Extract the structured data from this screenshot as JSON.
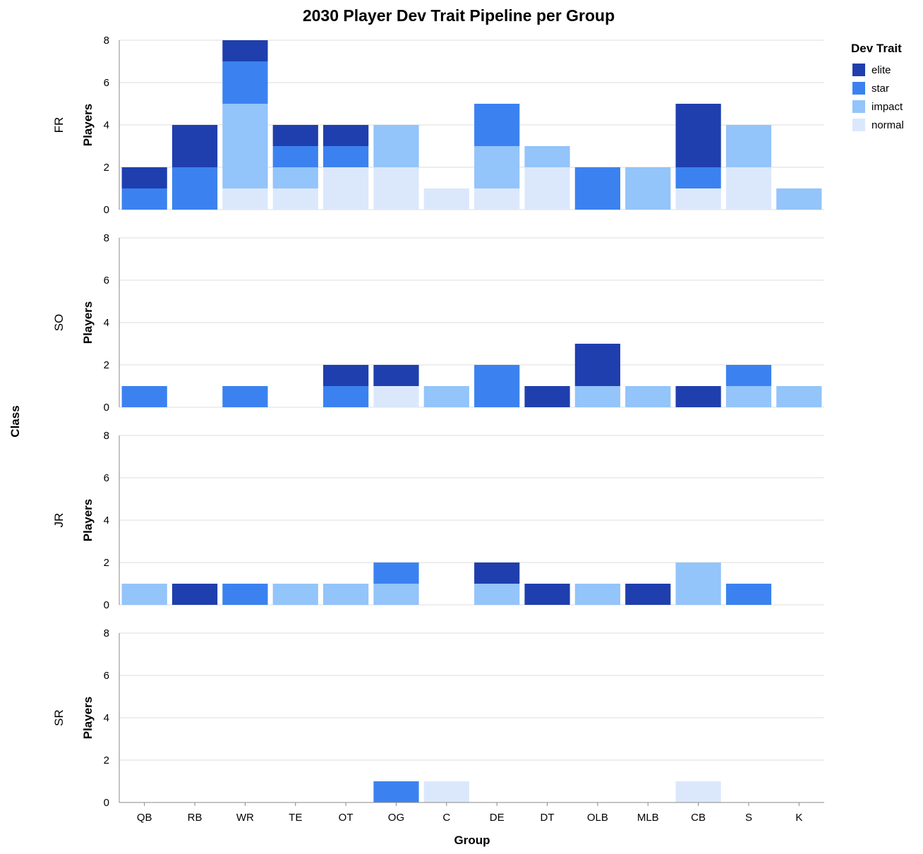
{
  "chart_data": {
    "type": "bar",
    "stacked": true,
    "faceted": true,
    "title": "2030 Player Dev Trait Pipeline per Group",
    "xlabel": "Group",
    "ylabel": "Players",
    "row_title": "Class",
    "legend_title": "Dev Trait",
    "legend_position": "top-right",
    "ylim": [
      0,
      8
    ],
    "yticks": [
      0,
      2,
      4,
      6,
      8
    ],
    "grid": true,
    "categories": [
      "QB",
      "RB",
      "WR",
      "TE",
      "OT",
      "OG",
      "C",
      "DE",
      "DT",
      "OLB",
      "MLB",
      "CB",
      "S",
      "K"
    ],
    "traits": [
      {
        "name": "elite",
        "color": "#1f3fae"
      },
      {
        "name": "star",
        "color": "#3b82f0"
      },
      {
        "name": "impact",
        "color": "#93c4fa"
      },
      {
        "name": "normal",
        "color": "#dbe8fc"
      }
    ],
    "rows": [
      {
        "label": "FR",
        "series": [
          {
            "name": "normal",
            "values": [
              0,
              0,
              1,
              1,
              2,
              2,
              1,
              1,
              2,
              0,
              0,
              1,
              2,
              0
            ]
          },
          {
            "name": "impact",
            "values": [
              0,
              0,
              4,
              1,
              0,
              2,
              0,
              2,
              1,
              0,
              2,
              0,
              2,
              1
            ]
          },
          {
            "name": "star",
            "values": [
              1,
              2,
              2,
              1,
              1,
              0,
              0,
              2,
              0,
              2,
              0,
              1,
              0,
              0
            ]
          },
          {
            "name": "elite",
            "values": [
              1,
              2,
              1,
              1,
              1,
              0,
              0,
              0,
              0,
              0,
              0,
              3,
              0,
              0
            ]
          }
        ]
      },
      {
        "label": "SO",
        "series": [
          {
            "name": "normal",
            "values": [
              0,
              0,
              0,
              0,
              0,
              1,
              0,
              0,
              0,
              0,
              0,
              0,
              0,
              0
            ]
          },
          {
            "name": "impact",
            "values": [
              0,
              0,
              0,
              0,
              0,
              0,
              1,
              0,
              0,
              1,
              1,
              0,
              1,
              1
            ]
          },
          {
            "name": "star",
            "values": [
              1,
              0,
              1,
              0,
              1,
              0,
              0,
              2,
              0,
              0,
              0,
              0,
              1,
              0
            ]
          },
          {
            "name": "elite",
            "values": [
              0,
              0,
              0,
              0,
              1,
              1,
              0,
              0,
              1,
              2,
              0,
              1,
              0,
              0
            ]
          }
        ]
      },
      {
        "label": "JR",
        "series": [
          {
            "name": "normal",
            "values": [
              0,
              0,
              0,
              0,
              0,
              0,
              0,
              0,
              0,
              0,
              0,
              0,
              0,
              0
            ]
          },
          {
            "name": "impact",
            "values": [
              1,
              0,
              0,
              1,
              1,
              1,
              0,
              1,
              0,
              1,
              0,
              2,
              0,
              0
            ]
          },
          {
            "name": "star",
            "values": [
              0,
              0,
              1,
              0,
              0,
              1,
              0,
              0,
              0,
              0,
              0,
              0,
              1,
              0
            ]
          },
          {
            "name": "elite",
            "values": [
              0,
              1,
              0,
              0,
              0,
              0,
              0,
              1,
              1,
              0,
              1,
              0,
              0,
              0
            ]
          }
        ]
      },
      {
        "label": "SR",
        "series": [
          {
            "name": "normal",
            "values": [
              0,
              0,
              0,
              0,
              0,
              0,
              1,
              0,
              0,
              0,
              0,
              1,
              0,
              0
            ]
          },
          {
            "name": "impact",
            "values": [
              0,
              0,
              0,
              0,
              0,
              0,
              0,
              0,
              0,
              0,
              0,
              0,
              0,
              0
            ]
          },
          {
            "name": "star",
            "values": [
              0,
              0,
              0,
              0,
              0,
              1,
              0,
              0,
              0,
              0,
              0,
              0,
              0,
              0
            ]
          },
          {
            "name": "elite",
            "values": [
              0,
              0,
              0,
              0,
              0,
              0,
              0,
              0,
              0,
              0,
              0,
              0,
              0,
              0
            ]
          }
        ]
      }
    ]
  }
}
